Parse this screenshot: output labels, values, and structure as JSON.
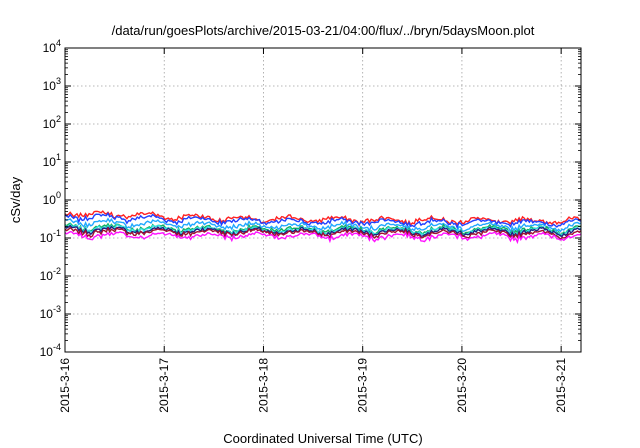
{
  "chart_data": {
    "type": "line",
    "title": "/data/run/goesPlots/archive/2015-03-21/04:00/flux/../bryn/5daysMoon.plot",
    "xlabel": "Coordinated Universal Time (UTC)",
    "ylabel": "cSv/day",
    "yscale": "log",
    "ylim": [
      0.0001,
      10000
    ],
    "xlim": [
      0,
      5.2
    ],
    "grid": true,
    "y_ticks": [
      {
        "base": "10",
        "exp": "4",
        "value": 10000
      },
      {
        "base": "10",
        "exp": "3",
        "value": 1000
      },
      {
        "base": "10",
        "exp": "2",
        "value": 100
      },
      {
        "base": "10",
        "exp": "1",
        "value": 10
      },
      {
        "base": "10",
        "exp": "0",
        "value": 1
      },
      {
        "base": "10",
        "exp": "-1",
        "value": 0.1
      },
      {
        "base": "10",
        "exp": "-2",
        "value": 0.01
      },
      {
        "base": "10",
        "exp": "-3",
        "value": 0.001
      },
      {
        "base": "10",
        "exp": "-4",
        "value": 0.0001
      }
    ],
    "x_ticks": [
      {
        "label": "2015-3-16",
        "value": 0
      },
      {
        "label": "2015-3-17",
        "value": 1
      },
      {
        "label": "2015-3-18",
        "value": 2
      },
      {
        "label": "2015-3-19",
        "value": 3
      },
      {
        "label": "2015-3-20",
        "value": 4
      },
      {
        "label": "2015-3-21",
        "value": 5
      }
    ],
    "series": [
      {
        "name": "red",
        "color": "#ff2020",
        "values_start_end": [
          0.45,
          0.28
        ],
        "level": 0.32
      },
      {
        "name": "blue",
        "color": "#2040ff",
        "values_start_end": [
          0.38,
          0.25
        ],
        "level": 0.28
      },
      {
        "name": "sky",
        "color": "#20a8ff",
        "values_start_end": [
          0.27,
          0.2
        ],
        "level": 0.21
      },
      {
        "name": "green",
        "color": "#10b060",
        "values_start_end": [
          0.2,
          0.17
        ],
        "level": 0.17
      },
      {
        "name": "cyan",
        "color": "#30e0e0",
        "values_start_end": [
          0.19,
          0.16
        ],
        "level": 0.16
      },
      {
        "name": "darkblue",
        "color": "#202080",
        "values_start_end": [
          0.17,
          0.15
        ],
        "level": 0.15
      },
      {
        "name": "maroon",
        "color": "#a01030",
        "values_start_end": [
          0.15,
          0.13
        ],
        "level": 0.14
      },
      {
        "name": "magenta",
        "color": "#ff10ff",
        "values_start_end": [
          0.12,
          0.11
        ],
        "level": 0.115
      }
    ]
  }
}
